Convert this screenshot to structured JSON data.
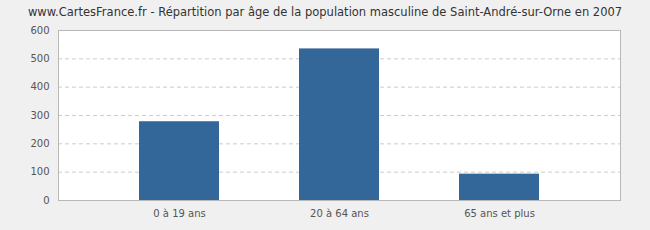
{
  "chart_data": {
    "type": "bar",
    "title": "www.CartesFrance.fr - Répartition par âge de la population masculine de Saint-André-sur-Orne en 2007",
    "categories": [
      "0 à 19 ans",
      "20 à 64 ans",
      "65 ans et plus"
    ],
    "values": [
      278,
      535,
      93
    ],
    "color": "#336699",
    "ylim": [
      0,
      600
    ],
    "yticks": [
      0,
      100,
      200,
      300,
      400,
      500,
      600
    ],
    "grid": true
  }
}
